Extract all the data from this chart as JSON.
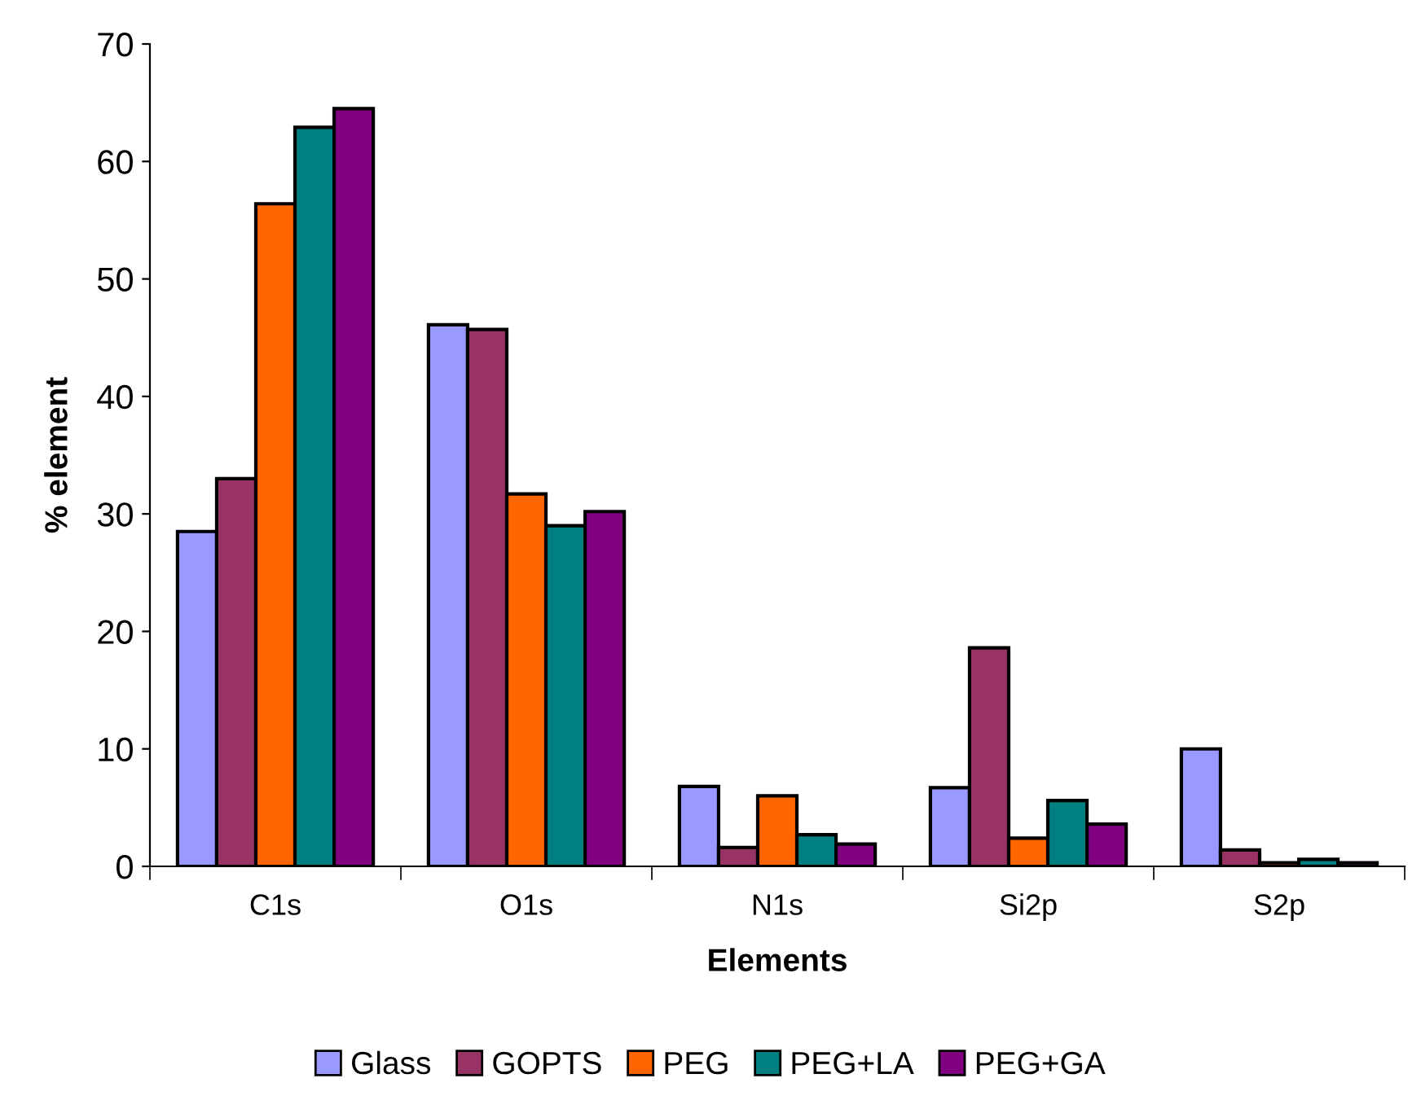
{
  "chart_data": {
    "type": "bar",
    "xlabel": "Elements",
    "ylabel": "% element",
    "categories": [
      "C1s",
      "O1s",
      "N1s",
      "Si2p",
      "S2p"
    ],
    "series": [
      {
        "name": "Glass",
        "color": "#9999ff",
        "values": [
          28.5,
          46.1,
          6.8,
          6.7,
          10.0
        ]
      },
      {
        "name": "GOPTS",
        "color": "#993366",
        "values": [
          33.0,
          45.7,
          1.6,
          18.6,
          1.4
        ]
      },
      {
        "name": "PEG",
        "color": "#ff6600",
        "values": [
          56.4,
          31.7,
          6.0,
          2.4,
          0.3
        ]
      },
      {
        "name": "PEG+LA",
        "color": "#008080",
        "values": [
          62.9,
          29.0,
          2.7,
          5.6,
          0.6
        ]
      },
      {
        "name": "PEG+GA",
        "color": "#800080",
        "values": [
          64.5,
          30.2,
          1.9,
          3.6,
          0.3
        ]
      }
    ],
    "ylim": [
      0,
      70
    ],
    "yticks": [
      0,
      10,
      20,
      30,
      40,
      50,
      60,
      70
    ],
    "grid": false,
    "legend": "bottom"
  }
}
